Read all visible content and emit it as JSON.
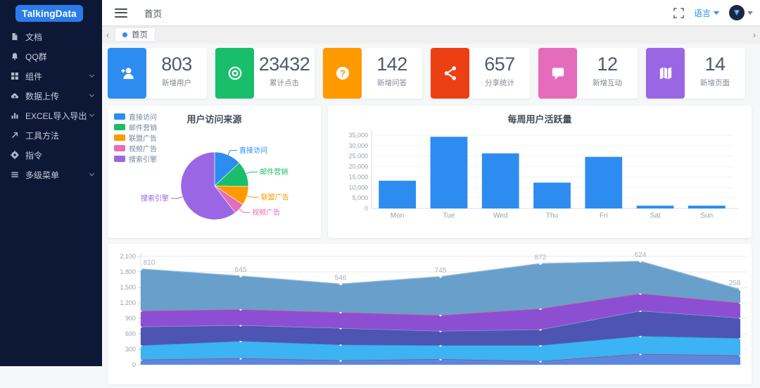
{
  "app": {
    "logo_text": "TalkingData"
  },
  "sidebar": {
    "items": [
      {
        "name": "docs",
        "label": "文档",
        "icon": "document-icon",
        "expandable": false
      },
      {
        "name": "qq-group",
        "label": "QQ群",
        "icon": "bell-icon",
        "expandable": false
      },
      {
        "name": "components",
        "label": "组件",
        "icon": "components-icon",
        "expandable": true
      },
      {
        "name": "data-upload",
        "label": "数据上传",
        "icon": "cloud-upload-icon",
        "expandable": true
      },
      {
        "name": "excel-import-export",
        "label": "EXCEL导入导出",
        "icon": "chart-bar-icon",
        "expandable": true
      },
      {
        "name": "tool-methods",
        "label": "工具方法",
        "icon": "arrow-up-right-icon",
        "expandable": false
      },
      {
        "name": "commands",
        "label": "指令",
        "icon": "gear-icon",
        "expandable": false
      },
      {
        "name": "multi-level-menu",
        "label": "多级菜单",
        "icon": "menu-lines-icon",
        "expandable": true
      }
    ]
  },
  "header": {
    "title": "首页",
    "language_label": "语言"
  },
  "tabbar": {
    "back_arrow": "‹",
    "forward_arrow": "›",
    "tabs": [
      {
        "label": "首页",
        "active": true
      }
    ]
  },
  "stat_cards": [
    {
      "name": "new-users",
      "value": "803",
      "label": "新增用户",
      "color": "#2d8cf0",
      "icon": "user-add-icon"
    },
    {
      "name": "total-clicks",
      "value": "23432",
      "label": "累计点击",
      "color": "#19be6b",
      "icon": "target-icon"
    },
    {
      "name": "new-qa",
      "value": "142",
      "label": "新增问答",
      "color": "#ff9900",
      "icon": "question-icon"
    },
    {
      "name": "share-stats",
      "value": "657",
      "label": "分享统计",
      "color": "#ed3f14",
      "icon": "share-icon"
    },
    {
      "name": "new-interact",
      "value": "12",
      "label": "新增互动",
      "color": "#e46cbb",
      "icon": "chat-icon"
    },
    {
      "name": "new-pages",
      "value": "14",
      "label": "新增页面",
      "color": "#9a66e4",
      "icon": "map-icon"
    }
  ],
  "chart_data": [
    {
      "type": "pie",
      "title": "用户访问来源",
      "legend_position": "top-left",
      "series": [
        {
          "name": "直接访问",
          "value": 335,
          "color": "#2d8cf0"
        },
        {
          "name": "邮件营销",
          "value": 310,
          "color": "#19be6b"
        },
        {
          "name": "联盟广告",
          "value": 234,
          "color": "#ff9900"
        },
        {
          "name": "视频广告",
          "value": 135,
          "color": "#e46cbb"
        },
        {
          "name": "搜索引擎",
          "value": 1548,
          "color": "#9a66e4"
        }
      ]
    },
    {
      "type": "bar",
      "title": "每周用户活跃量",
      "categories": [
        "Mon",
        "Tue",
        "Wed",
        "Thu",
        "Fri",
        "Sat",
        "Sun"
      ],
      "values": [
        13253,
        34235,
        26321,
        12340,
        24643,
        1322,
        1324
      ],
      "bar_color": "#2d8cf0",
      "ylim": [
        0,
        35000
      ],
      "ytick_step": 5000,
      "grid": true
    },
    {
      "type": "area",
      "stacked": true,
      "x_count": 7,
      "ylim": [
        0,
        2100
      ],
      "ytick_step": 300,
      "grid": true,
      "series": [
        {
          "name": "bottom-blue",
          "values": [
            100,
            125,
            85,
            110,
            70,
            210,
            180
          ],
          "fill": "#5b87e0",
          "line": "#a8435c"
        },
        {
          "name": "light-blue",
          "values": [
            277,
            335,
            305,
            267,
            307,
            348,
            336
          ],
          "fill": "#3cb3f2",
          "line": "#3f85c6"
        },
        {
          "name": "indigo",
          "values": [
            362,
            307,
            321,
            278,
            307,
            488,
            391
          ],
          "fill": "#4d54b2",
          "line": "#8ba2dd"
        },
        {
          "name": "purple",
          "values": [
            307,
            307,
            307,
            307,
            404,
            335,
            293
          ],
          "fill": "#8d4fd1",
          "line": "#e0628c"
        },
        {
          "name": "teal",
          "values": [
            810,
            645,
            546,
            745,
            872,
            624,
            258
          ],
          "fill": "#68a0cb",
          "line": "#8fb8d8",
          "show_labels": true
        }
      ],
      "point_labels": [
        "810",
        "645",
        "546",
        "745",
        "872",
        "624",
        "258"
      ]
    }
  ]
}
